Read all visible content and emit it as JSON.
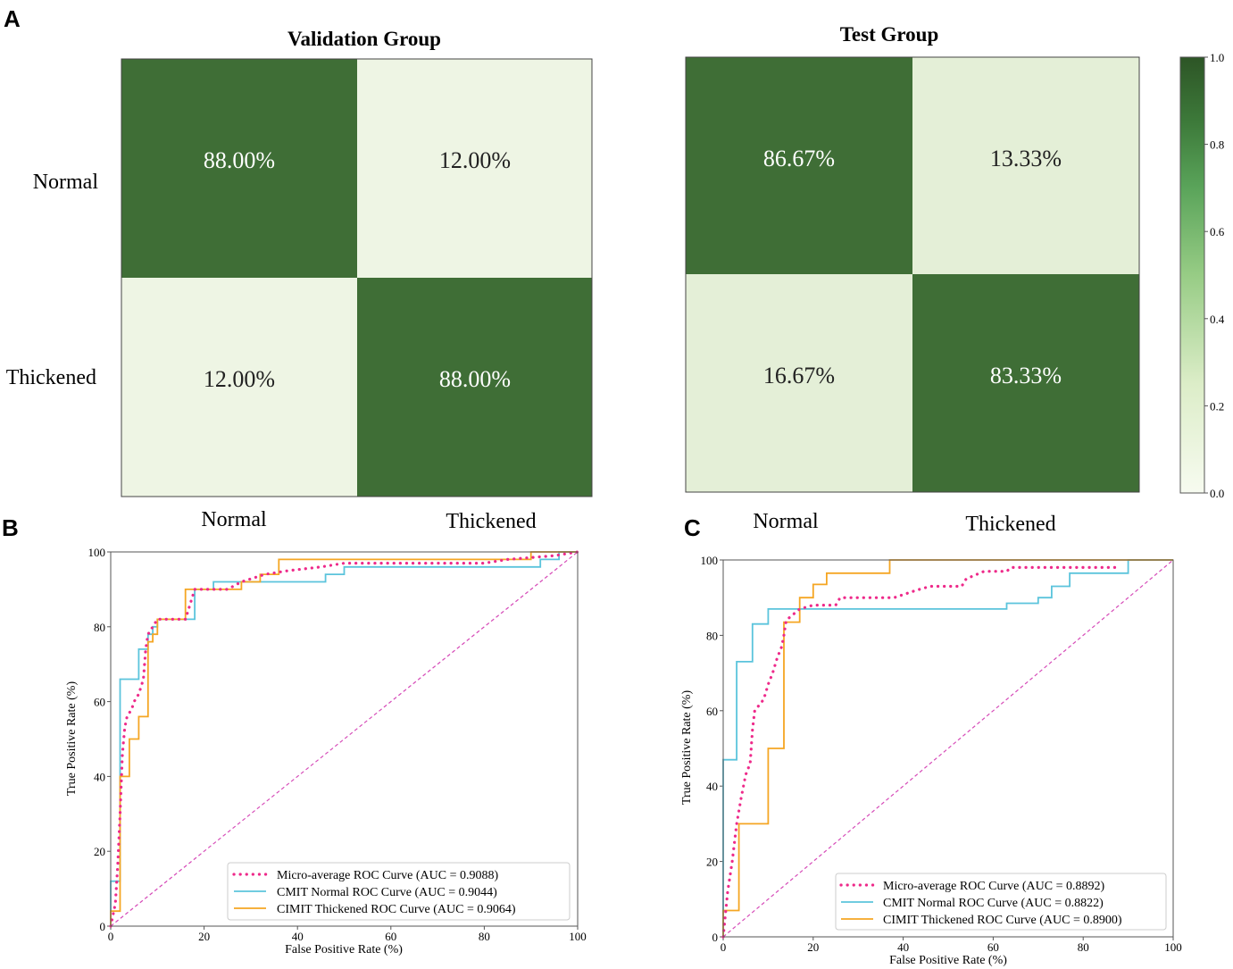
{
  "panel_labels": {
    "a": "A",
    "b": "B",
    "c": "C"
  },
  "colors": {
    "dark_green": "#3f6e36",
    "light_green_a": "#eef5e4",
    "light_green_b": "#e4efd7",
    "micro": "#ee2a8a",
    "normal": "#5bc4dc",
    "thickened": "#f5a623",
    "diagonal": "#d64bb8",
    "frame": "#555555"
  },
  "colorbar": {
    "ticks": [
      "1.0",
      "0.8",
      "0.6",
      "0.4",
      "0.2",
      "0.0"
    ]
  },
  "chart_data": [
    {
      "type": "heatmap",
      "title": "Validation Group",
      "row_labels": [
        "Normal",
        "Thickened"
      ],
      "col_labels": [
        "Normal",
        "Thickened"
      ],
      "values": [
        [
          0.88,
          0.12
        ],
        [
          0.12,
          0.88
        ]
      ],
      "cell_labels": [
        [
          "88.00%",
          "12.00%"
        ],
        [
          "12.00%",
          "88.00%"
        ]
      ]
    },
    {
      "type": "heatmap",
      "title": "Test Group",
      "row_labels": [
        "Normal",
        "Thickened"
      ],
      "col_labels": [
        "Normal",
        "Thickened"
      ],
      "values": [
        [
          0.8667,
          0.1333
        ],
        [
          0.1667,
          0.8333
        ]
      ],
      "cell_labels": [
        [
          "86.67%",
          "13.33%"
        ],
        [
          "16.67%",
          "83.33%"
        ]
      ],
      "colorbar_range": [
        0.0,
        1.0
      ]
    },
    {
      "type": "line",
      "xlabel": "False Positive Rate (%)",
      "ylabel": "True Positive Rate (%)",
      "xlim": [
        0,
        100
      ],
      "ylim": [
        0,
        100
      ],
      "xticks": [
        "0",
        "20",
        "40",
        "60",
        "80",
        "100"
      ],
      "yticks": [
        "0",
        "20",
        "40",
        "60",
        "80",
        "100"
      ],
      "legend_position": "bottom-right",
      "series": [
        {
          "name": "Micro-average ROC Curve (AUC = 0.9088)",
          "style": "dotted",
          "color_key": "micro",
          "points": [
            [
              0,
              0
            ],
            [
              1,
              6
            ],
            [
              1.5,
              16
            ],
            [
              2,
              30
            ],
            [
              2.5,
              46
            ],
            [
              3,
              53
            ],
            [
              3.5,
              56
            ],
            [
              4.5,
              58
            ],
            [
              5,
              60
            ],
            [
              6,
              62
            ],
            [
              7,
              66
            ],
            [
              7.5,
              74
            ],
            [
              8,
              78
            ],
            [
              9,
              80
            ],
            [
              10,
              82
            ],
            [
              16,
              82
            ],
            [
              17,
              86
            ],
            [
              17.5,
              88
            ],
            [
              18,
              90
            ],
            [
              25,
              90
            ],
            [
              28,
              92
            ],
            [
              33,
              94
            ],
            [
              38,
              95
            ],
            [
              45,
              96
            ],
            [
              50,
              97
            ],
            [
              80,
              97
            ],
            [
              85,
              98
            ],
            [
              95,
              99
            ],
            [
              100,
              100
            ]
          ]
        },
        {
          "name": "CMIT Normal ROC Curve (AUC = 0.9044)",
          "style": "solid",
          "color_key": "normal",
          "points": [
            [
              0,
              0
            ],
            [
              0,
              12
            ],
            [
              2,
              12
            ],
            [
              2,
              66
            ],
            [
              6,
              66
            ],
            [
              6,
              74
            ],
            [
              8,
              74
            ],
            [
              8,
              78
            ],
            [
              9,
              78
            ],
            [
              9,
              80
            ],
            [
              10,
              80
            ],
            [
              10,
              82
            ],
            [
              18,
              82
            ],
            [
              18,
              90
            ],
            [
              22,
              90
            ],
            [
              22,
              92
            ],
            [
              46,
              92
            ],
            [
              46,
              94
            ],
            [
              50,
              94
            ],
            [
              50,
              96
            ],
            [
              92,
              96
            ],
            [
              92,
              98
            ],
            [
              96,
              98
            ],
            [
              96,
              100
            ],
            [
              100,
              100
            ]
          ]
        },
        {
          "name": "CIMIT Thickened ROC Curve (AUC = 0.9064)",
          "style": "solid",
          "color_key": "thickened",
          "points": [
            [
              0,
              0
            ],
            [
              0,
              4
            ],
            [
              2,
              4
            ],
            [
              2,
              40
            ],
            [
              4,
              40
            ],
            [
              4,
              50
            ],
            [
              6,
              50
            ],
            [
              6,
              56
            ],
            [
              8,
              56
            ],
            [
              8,
              76
            ],
            [
              9,
              76
            ],
            [
              9,
              78
            ],
            [
              10,
              78
            ],
            [
              10,
              82
            ],
            [
              16,
              82
            ],
            [
              16,
              90
            ],
            [
              28,
              90
            ],
            [
              28,
              92
            ],
            [
              32,
              92
            ],
            [
              32,
              94
            ],
            [
              36,
              94
            ],
            [
              36,
              98
            ],
            [
              90,
              98
            ],
            [
              90,
              100
            ],
            [
              100,
              100
            ]
          ]
        },
        {
          "name": "diagonal",
          "style": "dashed",
          "color_key": "diagonal",
          "points": [
            [
              0,
              0
            ],
            [
              100,
              100
            ]
          ]
        }
      ]
    },
    {
      "type": "line",
      "xlabel": "False Positive Rate (%)",
      "ylabel": "True Positive Rate (%)",
      "xlim": [
        0,
        100
      ],
      "ylim": [
        0,
        100
      ],
      "xticks": [
        "0",
        "20",
        "40",
        "60",
        "80",
        "100"
      ],
      "yticks": [
        "0",
        "20",
        "40",
        "60",
        "80",
        "100"
      ],
      "legend_position": "bottom-right",
      "series": [
        {
          "name": "Micro-average ROC Curve (AUC = 0.8892)",
          "style": "dotted",
          "color_key": "micro",
          "points": [
            [
              0,
              0
            ],
            [
              1,
              12
            ],
            [
              2,
              20
            ],
            [
              3,
              30
            ],
            [
              4,
              37
            ],
            [
              5,
              43
            ],
            [
              6,
              46
            ],
            [
              6.5,
              55
            ],
            [
              7,
              60
            ],
            [
              9,
              63
            ],
            [
              10,
              67
            ],
            [
              11,
              70
            ],
            [
              12,
              74
            ],
            [
              13,
              77
            ],
            [
              13.5,
              80
            ],
            [
              14,
              84
            ],
            [
              17,
              87
            ],
            [
              20,
              88
            ],
            [
              25,
              88
            ],
            [
              26,
              90
            ],
            [
              38,
              90
            ],
            [
              43,
              92
            ],
            [
              46,
              93
            ],
            [
              53,
              93
            ],
            [
              54,
              95
            ],
            [
              58,
              97
            ],
            [
              63,
              97
            ],
            [
              64,
              98
            ],
            [
              87,
              98
            ]
          ]
        },
        {
          "name": "CMIT Normal ROC Curve (AUC = 0.8822)",
          "style": "solid",
          "color_key": "normal",
          "points": [
            [
              0,
              0
            ],
            [
              0,
              47
            ],
            [
              3,
              47
            ],
            [
              3,
              73
            ],
            [
              6.5,
              73
            ],
            [
              6.5,
              83
            ],
            [
              10,
              83
            ],
            [
              10,
              87
            ],
            [
              63,
              87
            ],
            [
              63,
              88.5
            ],
            [
              70,
              88.5
            ],
            [
              70,
              90
            ],
            [
              73,
              90
            ],
            [
              73,
              93
            ],
            [
              77,
              93
            ],
            [
              77,
              96.5
            ],
            [
              90,
              96.5
            ],
            [
              90,
              100
            ],
            [
              100,
              100
            ]
          ]
        },
        {
          "name": "CIMIT Thickened ROC Curve (AUC = 0.8900)",
          "style": "solid",
          "color_key": "thickened",
          "points": [
            [
              0,
              0
            ],
            [
              0,
              7
            ],
            [
              3.5,
              7
            ],
            [
              3.5,
              30
            ],
            [
              10,
              30
            ],
            [
              10,
              50
            ],
            [
              13.5,
              50
            ],
            [
              13.5,
              83.5
            ],
            [
              17,
              83.5
            ],
            [
              17,
              90
            ],
            [
              20,
              90
            ],
            [
              20,
              93.5
            ],
            [
              23,
              93.5
            ],
            [
              23,
              96.5
            ],
            [
              37,
              96.5
            ],
            [
              37,
              100
            ],
            [
              100,
              100
            ]
          ]
        },
        {
          "name": "diagonal",
          "style": "dashed",
          "color_key": "diagonal",
          "points": [
            [
              0,
              0
            ],
            [
              100,
              100
            ]
          ]
        }
      ]
    }
  ]
}
